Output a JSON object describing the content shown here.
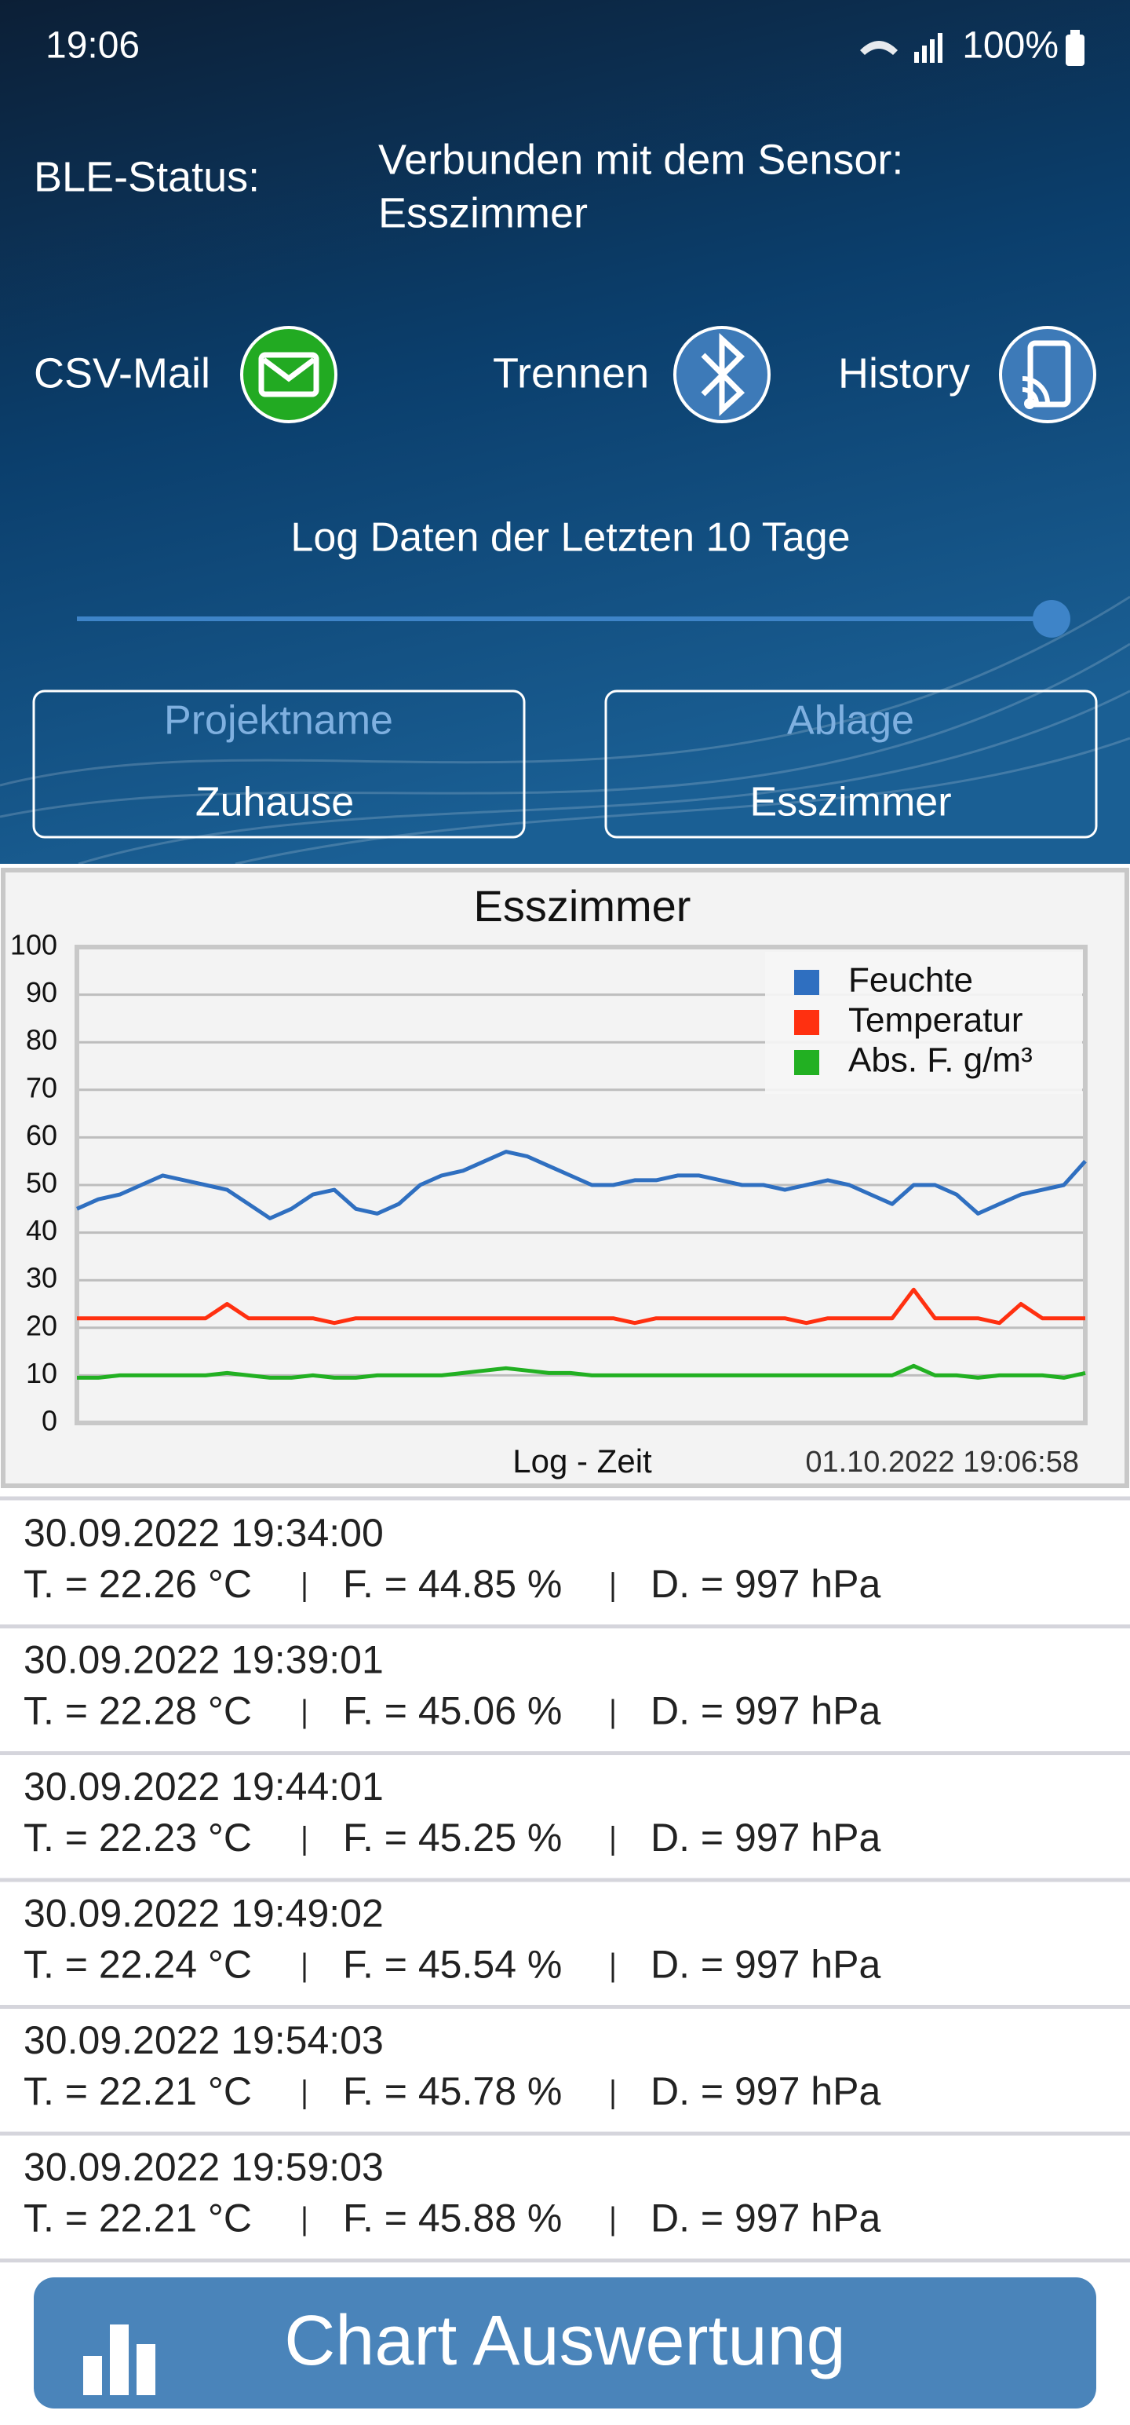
{
  "status_bar": {
    "time": "19:06",
    "battery": "100%"
  },
  "header": {
    "ble_label": "BLE-Status:",
    "ble_status_lines": [
      "Verbunden mit dem Sensor:",
      "Esszimmer"
    ]
  },
  "actions": [
    {
      "label": "CSV-Mail"
    },
    {
      "label": "Trennen"
    },
    {
      "label": "History"
    }
  ],
  "log_range": {
    "label": "Log Daten der Letzten 10 Tage"
  },
  "fields": [
    {
      "label": "Projektname",
      "value": "Zuhause"
    },
    {
      "label": "Ablage",
      "value": "Esszimmer"
    }
  ],
  "chart_data": {
    "type": "line",
    "title": "Esszimmer",
    "xlabel": "Log - Zeit",
    "annotation": "01.10.2022 19:06:58",
    "categories": [
      null,
      null,
      null,
      null,
      null,
      null,
      null,
      null,
      null,
      null,
      null,
      null,
      null,
      null,
      null,
      null,
      null,
      null,
      null,
      null,
      null,
      null,
      null,
      null,
      null,
      null,
      null,
      null,
      null,
      null,
      null,
      null,
      null,
      null,
      null,
      null,
      null,
      null,
      null,
      null,
      null,
      null,
      null,
      null,
      null,
      null,
      null,
      null
    ],
    "series": [
      {
        "name": "Feuchte",
        "color": "#2f6fc0",
        "values": [
          45,
          47,
          48,
          50,
          52,
          51,
          50,
          49,
          46,
          43,
          45,
          48,
          49,
          45,
          44,
          46,
          50,
          52,
          53,
          55,
          57,
          56,
          54,
          52,
          50,
          50,
          51,
          51,
          52,
          52,
          51,
          50,
          50,
          49,
          50,
          51,
          50,
          48,
          46,
          50,
          50,
          48,
          44,
          46,
          48,
          49,
          50,
          55
        ]
      },
      {
        "name": "Temperatur",
        "color": "#ff3010",
        "values": [
          22,
          22,
          22,
          22,
          22,
          22,
          22,
          25,
          22,
          22,
          22,
          22,
          21,
          22,
          22,
          22,
          22,
          22,
          22,
          22,
          22,
          22,
          22,
          22,
          22,
          22,
          21,
          22,
          22,
          22,
          22,
          22,
          22,
          22,
          21,
          22,
          22,
          22,
          22,
          28,
          22,
          22,
          22,
          21,
          25,
          22,
          22,
          22
        ]
      },
      {
        "name": "Abs. F. g/m³",
        "color": "#22b022",
        "values": [
          9.5,
          9.5,
          10,
          10,
          10,
          10,
          10,
          10.5,
          10,
          9.5,
          9.5,
          10,
          9.5,
          9.5,
          10,
          10,
          10,
          10,
          10.5,
          11,
          11.5,
          11,
          10.5,
          10.5,
          10,
          10,
          10,
          10,
          10,
          10,
          10,
          10,
          10,
          10,
          10,
          10,
          10,
          10,
          10,
          12,
          10,
          10,
          9.5,
          10,
          10,
          10,
          9.5,
          10.5
        ]
      }
    ],
    "ylim": [
      0,
      100
    ],
    "yticks": [
      0,
      10,
      20,
      30,
      40,
      50,
      60,
      70,
      80,
      90,
      100
    ],
    "grid": true,
    "legend": "upper right"
  },
  "log_entries": [
    {
      "time": "30.09.2022 19:34:00",
      "temperature": "T. = 22.26 °C",
      "humidity": "F. = 44.85 %",
      "pressure": "D. = 997 hPa"
    },
    {
      "time": "30.09.2022 19:39:01",
      "temperature": "T. = 22.28 °C",
      "humidity": "F. = 45.06 %",
      "pressure": "D. = 997 hPa"
    },
    {
      "time": "30.09.2022 19:44:01",
      "temperature": "T. = 22.23 °C",
      "humidity": "F. = 45.25 %",
      "pressure": "D. = 997 hPa"
    },
    {
      "time": "30.09.2022 19:49:02",
      "temperature": "T. = 22.24 °C",
      "humidity": "F. = 45.54 %",
      "pressure": "D. = 997 hPa"
    },
    {
      "time": "30.09.2022 19:54:03",
      "temperature": "T. = 22.21 °C",
      "humidity": "F. = 45.78 %",
      "pressure": "D. = 997 hPa"
    },
    {
      "time": "30.09.2022 19:59:03",
      "temperature": "T. = 22.21 °C",
      "humidity": "F. = 45.88 %",
      "pressure": "D. = 997 hPa"
    }
  ],
  "footer_button": {
    "label": "Chart Auswertung"
  }
}
